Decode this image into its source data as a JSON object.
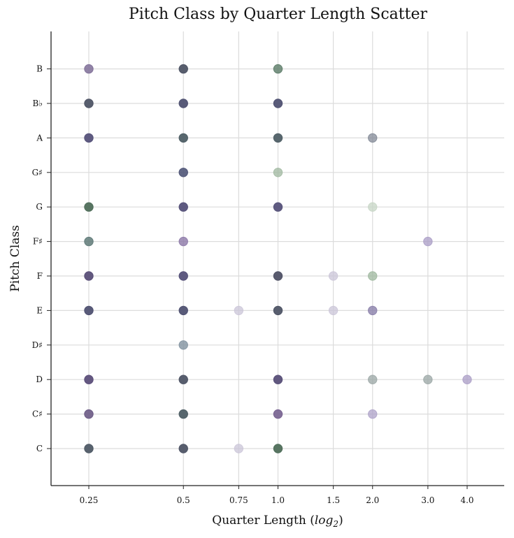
{
  "chart_data": {
    "type": "scatter",
    "title": "Pitch Class by Quarter Length Scatter",
    "xlabel": "Quarter Length (log2)",
    "ylabel": "Pitch Class",
    "x_scale": "log2",
    "x_ticks": [
      0.25,
      0.5,
      0.75,
      1.0,
      1.5,
      2.0,
      3.0,
      4.0
    ],
    "x_tick_labels": [
      "0.25",
      "0.5",
      "0.75",
      "1.0",
      "1.5",
      "2.0",
      "3.0",
      "4.0"
    ],
    "y_categories": [
      "C",
      "C♯",
      "D",
      "D♯",
      "E",
      "F",
      "F♯",
      "G",
      "G♯",
      "A",
      "B♭",
      "B"
    ],
    "grid": true,
    "legend": "none",
    "point_colors": {
      "dark": "#4f5566",
      "purple": "#6b5a85",
      "green": "#5a7a66",
      "light_purple": "#a99cbf",
      "light_green": "#b9ccbb",
      "grey_blue": "#8292a0",
      "faint": "#c9c6d6"
    },
    "points": [
      {
        "x": 0.25,
        "y": "B",
        "color": "#7f6f98",
        "alpha": 0.85
      },
      {
        "x": 0.5,
        "y": "B",
        "color": "#4f5566",
        "alpha": 0.95
      },
      {
        "x": 1.0,
        "y": "B",
        "color": "#5a7a66",
        "alpha": 0.8
      },
      {
        "x": 0.25,
        "y": "B♭",
        "color": "#4f5566",
        "alpha": 0.95
      },
      {
        "x": 0.5,
        "y": "B♭",
        "color": "#505272",
        "alpha": 0.95
      },
      {
        "x": 1.0,
        "y": "B♭",
        "color": "#505272",
        "alpha": 0.95
      },
      {
        "x": 0.25,
        "y": "A",
        "color": "#56527a",
        "alpha": 0.95
      },
      {
        "x": 0.5,
        "y": "A",
        "color": "#4f5f66",
        "alpha": 0.95
      },
      {
        "x": 1.0,
        "y": "A",
        "color": "#4f5f66",
        "alpha": 0.95
      },
      {
        "x": 2.0,
        "y": "A",
        "color": "#7a8290",
        "alpha": 0.7
      },
      {
        "x": 0.5,
        "y": "G♯",
        "color": "#505678",
        "alpha": 0.9
      },
      {
        "x": 1.0,
        "y": "G♯",
        "color": "#9fb79f",
        "alpha": 0.75
      },
      {
        "x": 0.25,
        "y": "G",
        "color": "#4f6e5a",
        "alpha": 0.95
      },
      {
        "x": 0.5,
        "y": "G",
        "color": "#56527a",
        "alpha": 0.95
      },
      {
        "x": 1.0,
        "y": "G",
        "color": "#56527a",
        "alpha": 0.95
      },
      {
        "x": 2.0,
        "y": "G",
        "color": "#c7d6c6",
        "alpha": 0.75
      },
      {
        "x": 0.25,
        "y": "F♯",
        "color": "#5f7a78",
        "alpha": 0.85
      },
      {
        "x": 0.5,
        "y": "F♯",
        "color": "#8c78a8",
        "alpha": 0.8
      },
      {
        "x": 3.0,
        "y": "F♯",
        "color": "#a99cc5",
        "alpha": 0.75
      },
      {
        "x": 0.25,
        "y": "F",
        "color": "#5a4f78",
        "alpha": 0.95
      },
      {
        "x": 0.5,
        "y": "F",
        "color": "#56527a",
        "alpha": 0.95
      },
      {
        "x": 1.0,
        "y": "F",
        "color": "#505266",
        "alpha": 0.95
      },
      {
        "x": 1.5,
        "y": "F",
        "color": "#cbc6d8",
        "alpha": 0.75
      },
      {
        "x": 2.0,
        "y": "F",
        "color": "#9db79d",
        "alpha": 0.75
      },
      {
        "x": 0.25,
        "y": "E",
        "color": "#505272",
        "alpha": 0.95
      },
      {
        "x": 0.5,
        "y": "E",
        "color": "#505272",
        "alpha": 0.95
      },
      {
        "x": 0.75,
        "y": "E",
        "color": "#cbc6d8",
        "alpha": 0.75
      },
      {
        "x": 1.0,
        "y": "E",
        "color": "#4f5566",
        "alpha": 0.95
      },
      {
        "x": 1.5,
        "y": "E",
        "color": "#cbc6d8",
        "alpha": 0.75
      },
      {
        "x": 2.0,
        "y": "E",
        "color": "#8a80aa",
        "alpha": 0.8
      },
      {
        "x": 0.5,
        "y": "D♯",
        "color": "#8292a0",
        "alpha": 0.8
      },
      {
        "x": 0.25,
        "y": "D",
        "color": "#5c4f7a",
        "alpha": 0.95
      },
      {
        "x": 0.5,
        "y": "D",
        "color": "#4f5566",
        "alpha": 0.95
      },
      {
        "x": 1.0,
        "y": "D",
        "color": "#584f78",
        "alpha": 0.95
      },
      {
        "x": 2.0,
        "y": "D",
        "color": "#9aa6a4",
        "alpha": 0.75
      },
      {
        "x": 3.0,
        "y": "D",
        "color": "#9aa6a4",
        "alpha": 0.75
      },
      {
        "x": 4.0,
        "y": "D",
        "color": "#a99cc5",
        "alpha": 0.75
      },
      {
        "x": 0.25,
        "y": "C♯",
        "color": "#6b5a85",
        "alpha": 0.9
      },
      {
        "x": 0.5,
        "y": "C♯",
        "color": "#4f5f66",
        "alpha": 0.95
      },
      {
        "x": 1.0,
        "y": "C♯",
        "color": "#76608f",
        "alpha": 0.9
      },
      {
        "x": 2.0,
        "y": "C♯",
        "color": "#ada2c8",
        "alpha": 0.75
      },
      {
        "x": 0.25,
        "y": "C",
        "color": "#4f5a66",
        "alpha": 0.95
      },
      {
        "x": 0.5,
        "y": "C",
        "color": "#4f5566",
        "alpha": 0.95
      },
      {
        "x": 0.75,
        "y": "C",
        "color": "#cbc6d8",
        "alpha": 0.75
      },
      {
        "x": 1.0,
        "y": "C",
        "color": "#4f6e5a",
        "alpha": 0.95
      }
    ]
  }
}
